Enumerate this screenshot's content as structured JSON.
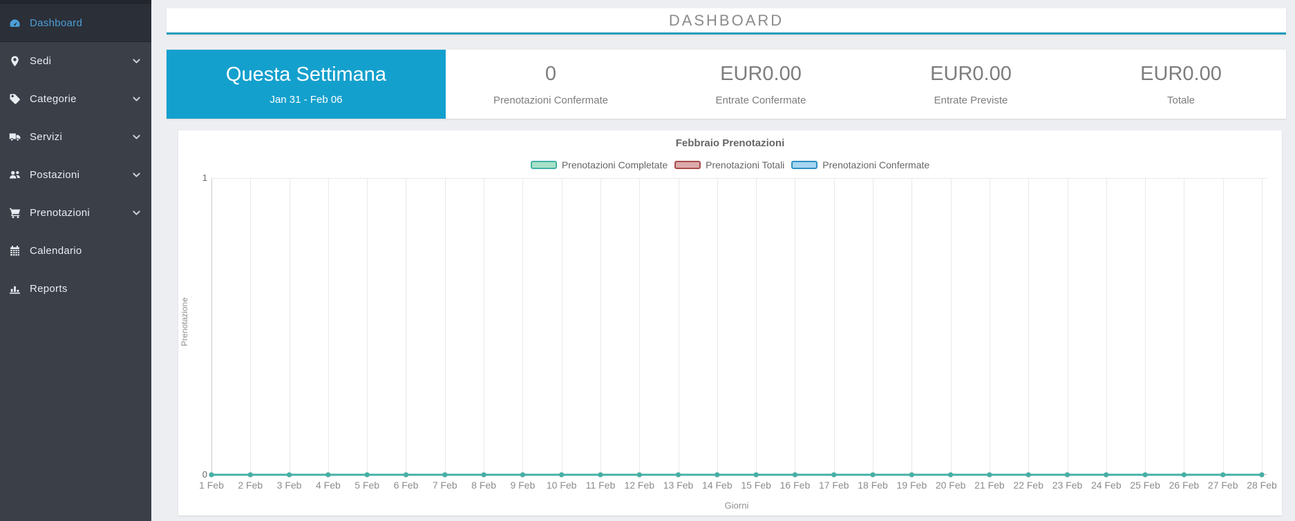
{
  "colors": {
    "sidebar_bg": "#3a3f48",
    "sidebar_active_text": "#4b9fd8",
    "header_underline": "#1a9bbd",
    "period_bg": "#14a0cd"
  },
  "sidebar": {
    "items": [
      {
        "label": "Dashboard",
        "icon": "dashboard-icon",
        "active": true,
        "chevron": false
      },
      {
        "label": "Sedi",
        "icon": "map-marker-icon",
        "active": false,
        "chevron": true
      },
      {
        "label": "Categorie",
        "icon": "tag-icon",
        "active": false,
        "chevron": true
      },
      {
        "label": "Servizi",
        "icon": "truck-icon",
        "active": false,
        "chevron": true
      },
      {
        "label": "Postazioni",
        "icon": "users-icon",
        "active": false,
        "chevron": true
      },
      {
        "label": "Prenotazioni",
        "icon": "cart-icon",
        "active": false,
        "chevron": true
      },
      {
        "label": "Calendario",
        "icon": "calendar-icon",
        "active": false,
        "chevron": false
      },
      {
        "label": "Reports",
        "icon": "bar-chart-icon",
        "active": false,
        "chevron": false
      }
    ]
  },
  "header": {
    "title": "DASHBOARD"
  },
  "stats": {
    "period": {
      "title": "Questa Settimana",
      "range": "Jan 31 - Feb 06"
    },
    "items": [
      {
        "value": "0",
        "label": "Prenotazioni Confermate"
      },
      {
        "value": "EUR0.00",
        "label": "Entrate Confermate"
      },
      {
        "value": "EUR0.00",
        "label": "Entrate Previste"
      },
      {
        "value": "EUR0.00",
        "label": "Totale"
      }
    ]
  },
  "chart_data": {
    "type": "line",
    "title": "Febbraio Prenotazioni",
    "xlabel": "Giorni",
    "ylabel": "Prenotazione",
    "ylim": [
      0,
      1
    ],
    "yticks": [
      0,
      1
    ],
    "grid": true,
    "legend_position": "top",
    "x": [
      "1 Feb",
      "2 Feb",
      "3 Feb",
      "4 Feb",
      "5 Feb",
      "6 Feb",
      "7 Feb",
      "8 Feb",
      "9 Feb",
      "10 Feb",
      "11 Feb",
      "12 Feb",
      "13 Feb",
      "14 Feb",
      "15 Feb",
      "16 Feb",
      "17 Feb",
      "18 Feb",
      "19 Feb",
      "20 Feb",
      "21 Feb",
      "22 Feb",
      "23 Feb",
      "24 Feb",
      "25 Feb",
      "26 Feb",
      "27 Feb",
      "28 Feb"
    ],
    "series": [
      {
        "name": "Prenotazioni Completate",
        "color": "#44b1a5",
        "fill": "#a9e1c9",
        "values": [
          0,
          0,
          0,
          0,
          0,
          0,
          0,
          0,
          0,
          0,
          0,
          0,
          0,
          0,
          0,
          0,
          0,
          0,
          0,
          0,
          0,
          0,
          0,
          0,
          0,
          0,
          0,
          0
        ]
      },
      {
        "name": "Prenotazioni Totali",
        "color": "#aa4b4b",
        "fill": "#dcaaaa",
        "values": [
          0,
          0,
          0,
          0,
          0,
          0,
          0,
          0,
          0,
          0,
          0,
          0,
          0,
          0,
          0,
          0,
          0,
          0,
          0,
          0,
          0,
          0,
          0,
          0,
          0,
          0,
          0,
          0
        ]
      },
      {
        "name": "Prenotazioni Confermate",
        "color": "#2f8fc0",
        "fill": "#a6d6f2",
        "values": [
          0,
          0,
          0,
          0,
          0,
          0,
          0,
          0,
          0,
          0,
          0,
          0,
          0,
          0,
          0,
          0,
          0,
          0,
          0,
          0,
          0,
          0,
          0,
          0,
          0,
          0,
          0,
          0
        ]
      }
    ]
  }
}
